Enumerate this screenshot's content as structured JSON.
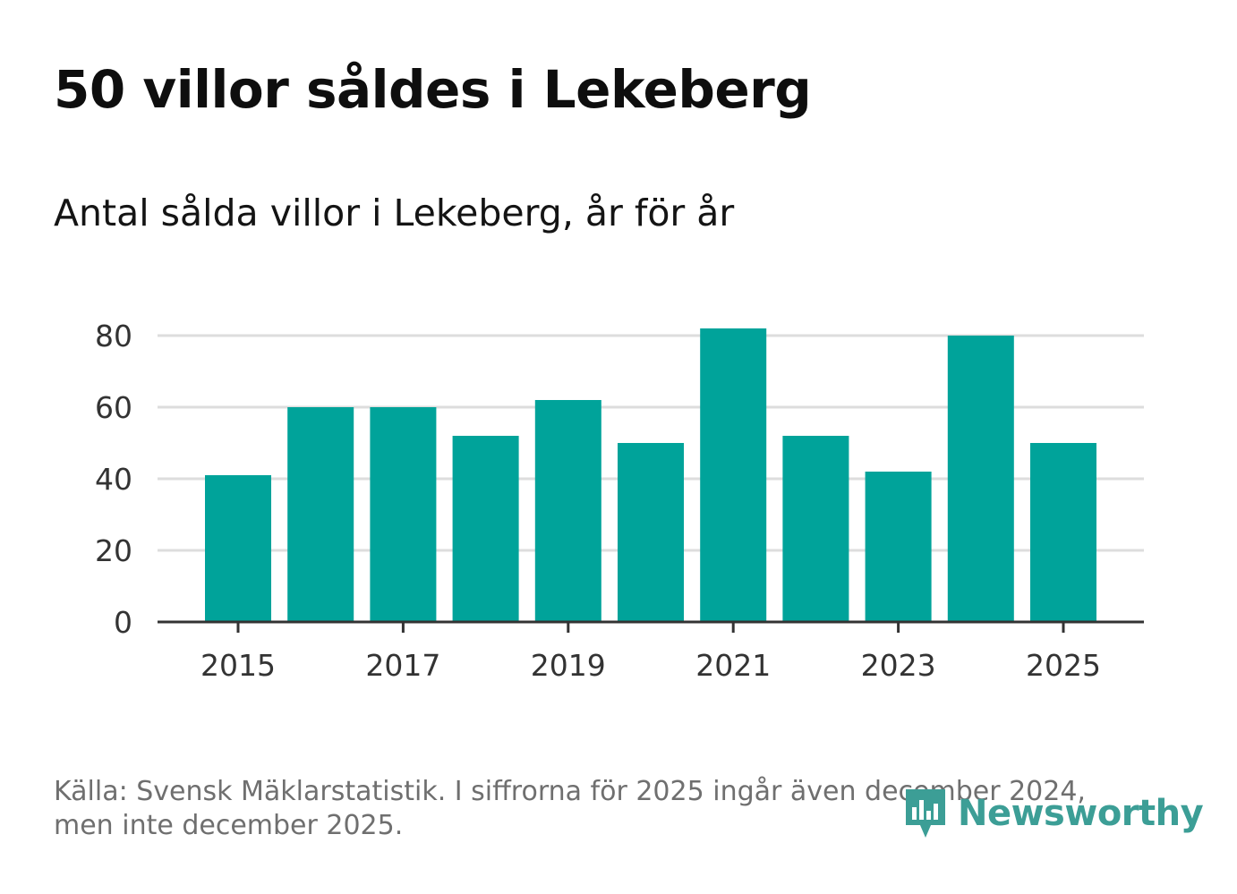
{
  "header": {
    "title": "50 villor såldes i Lekeberg",
    "subtitle": "Antal sålda villor i Lekeberg, år för år"
  },
  "footer": {
    "source": "Källa: Svensk Mäklarstatistik. I siffrorna för 2025 ingår även december 2024, men inte december 2025."
  },
  "logo": {
    "text": "Newsworthy",
    "icon": "bar-chart-speech-bubble-icon"
  },
  "colors": {
    "bar": "#00a39a",
    "grid": "#dddddd",
    "axis": "#333333",
    "logo": "#3c9e96"
  },
  "chart_data": {
    "type": "bar",
    "title": "50 villor såldes i Lekeberg",
    "subtitle": "Antal sålda villor i Lekeberg, år för år",
    "xlabel": "",
    "ylabel": "",
    "categories": [
      "2015",
      "2016",
      "2017",
      "2018",
      "2019",
      "2020",
      "2021",
      "2022",
      "2023",
      "2024",
      "2025"
    ],
    "values": [
      41,
      60,
      60,
      52,
      62,
      50,
      82,
      52,
      42,
      80,
      50
    ],
    "x_tick_labels": [
      "2015",
      "2017",
      "2019",
      "2021",
      "2023",
      "2025"
    ],
    "y_ticks": [
      0,
      20,
      40,
      60,
      80
    ],
    "ylim": [
      0,
      82
    ],
    "grid": true,
    "legend": "none"
  }
}
